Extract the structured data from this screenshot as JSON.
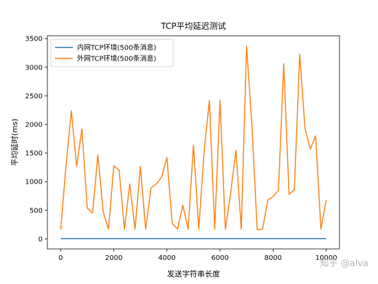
{
  "chart_data": {
    "type": "line",
    "title": "TCP平均延迟测试",
    "xlabel": "发送字符串长度",
    "ylabel": "平均延时(ms)",
    "xlim": [
      -500,
      10500
    ],
    "ylim": [
      -175,
      3550
    ],
    "xticks": [
      0,
      2000,
      4000,
      6000,
      8000,
      10000
    ],
    "yticks": [
      0,
      500,
      1000,
      1500,
      2000,
      2500,
      3000,
      3500
    ],
    "grid": false,
    "legend_position": "top-left",
    "x": [
      0,
      200,
      400,
      600,
      800,
      1000,
      1200,
      1400,
      1600,
      1800,
      2000,
      2200,
      2400,
      2600,
      2800,
      3000,
      3200,
      3400,
      3600,
      3800,
      4000,
      4200,
      4400,
      4600,
      4800,
      5000,
      5200,
      5400,
      5600,
      5800,
      6000,
      6200,
      6400,
      6600,
      6800,
      7000,
      7200,
      7400,
      7600,
      7800,
      8000,
      8200,
      8400,
      8600,
      8800,
      9000,
      9200,
      9400,
      9600,
      9800,
      10000
    ],
    "series": [
      {
        "name": "内网TCP环境(500条消息)",
        "color": "#1f77b4",
        "values": [
          5,
          5,
          5,
          5,
          5,
          5,
          5,
          5,
          5,
          5,
          5,
          5,
          5,
          5,
          5,
          5,
          5,
          5,
          5,
          5,
          5,
          5,
          5,
          5,
          5,
          5,
          5,
          5,
          5,
          5,
          5,
          5,
          5,
          5,
          5,
          5,
          5,
          5,
          5,
          5,
          5,
          5,
          5,
          5,
          5,
          5,
          5,
          5,
          5,
          5,
          5
        ]
      },
      {
        "name": "外网TCP环境(500条消息)",
        "color": "#ff7f0e",
        "values": [
          160,
          1280,
          2240,
          1270,
          1920,
          540,
          450,
          1470,
          470,
          170,
          1280,
          1200,
          170,
          960,
          170,
          1270,
          170,
          890,
          960,
          1080,
          1420,
          270,
          170,
          590,
          170,
          1640,
          170,
          1530,
          2420,
          170,
          2420,
          170,
          800,
          1550,
          170,
          3370,
          2000,
          160,
          170,
          680,
          740,
          850,
          3060,
          780,
          860,
          3230,
          1930,
          1570,
          1800,
          170,
          680
        ]
      }
    ]
  },
  "watermark": "知乎 @alva"
}
